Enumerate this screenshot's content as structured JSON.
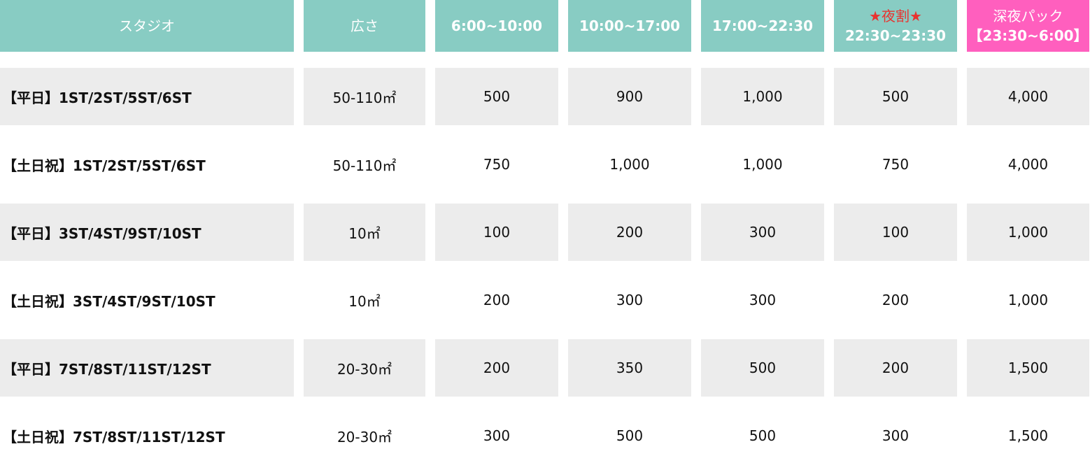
{
  "header": {
    "studio": "スタジオ",
    "area": "広さ",
    "slot1": "6:00~10:00",
    "slot2": "10:00~17:00",
    "slot3": "17:00~22:30",
    "slot4_badge": "★夜割★",
    "slot4": "22:30~23:30",
    "slot5_title": "深夜パック",
    "slot5": "【23:30~6:00】"
  },
  "colors": {
    "header": "#88ccc3",
    "late_pack": "#ff5fbe",
    "night_badge": "#e8332f",
    "row_stripe": "#ececec"
  },
  "rows": [
    {
      "studio": "【平日】1ST/2ST/5ST/6ST",
      "area": "50-110㎡",
      "p1": "500",
      "p2": "900",
      "p3": "1,000",
      "p4": "500",
      "p5": "4,000"
    },
    {
      "studio": "【土日祝】1ST/2ST/5ST/6ST",
      "area": "50-110㎡",
      "p1": "750",
      "p2": "1,000",
      "p3": "1,000",
      "p4": "750",
      "p5": "4,000"
    },
    {
      "studio": "【平日】3ST/4ST/9ST/10ST",
      "area": "10㎡",
      "p1": "100",
      "p2": "200",
      "p3": "300",
      "p4": "100",
      "p5": "1,000"
    },
    {
      "studio": "【土日祝】3ST/4ST/9ST/10ST",
      "area": "10㎡",
      "p1": "200",
      "p2": "300",
      "p3": "300",
      "p4": "200",
      "p5": "1,000"
    },
    {
      "studio": "【平日】7ST/8ST/11ST/12ST",
      "area": "20-30㎡",
      "p1": "200",
      "p2": "350",
      "p3": "500",
      "p4": "200",
      "p5": "1,500"
    },
    {
      "studio": "【土日祝】7ST/8ST/11ST/12ST",
      "area": "20-30㎡",
      "p1": "300",
      "p2": "500",
      "p3": "500",
      "p4": "300",
      "p5": "1,500"
    }
  ]
}
